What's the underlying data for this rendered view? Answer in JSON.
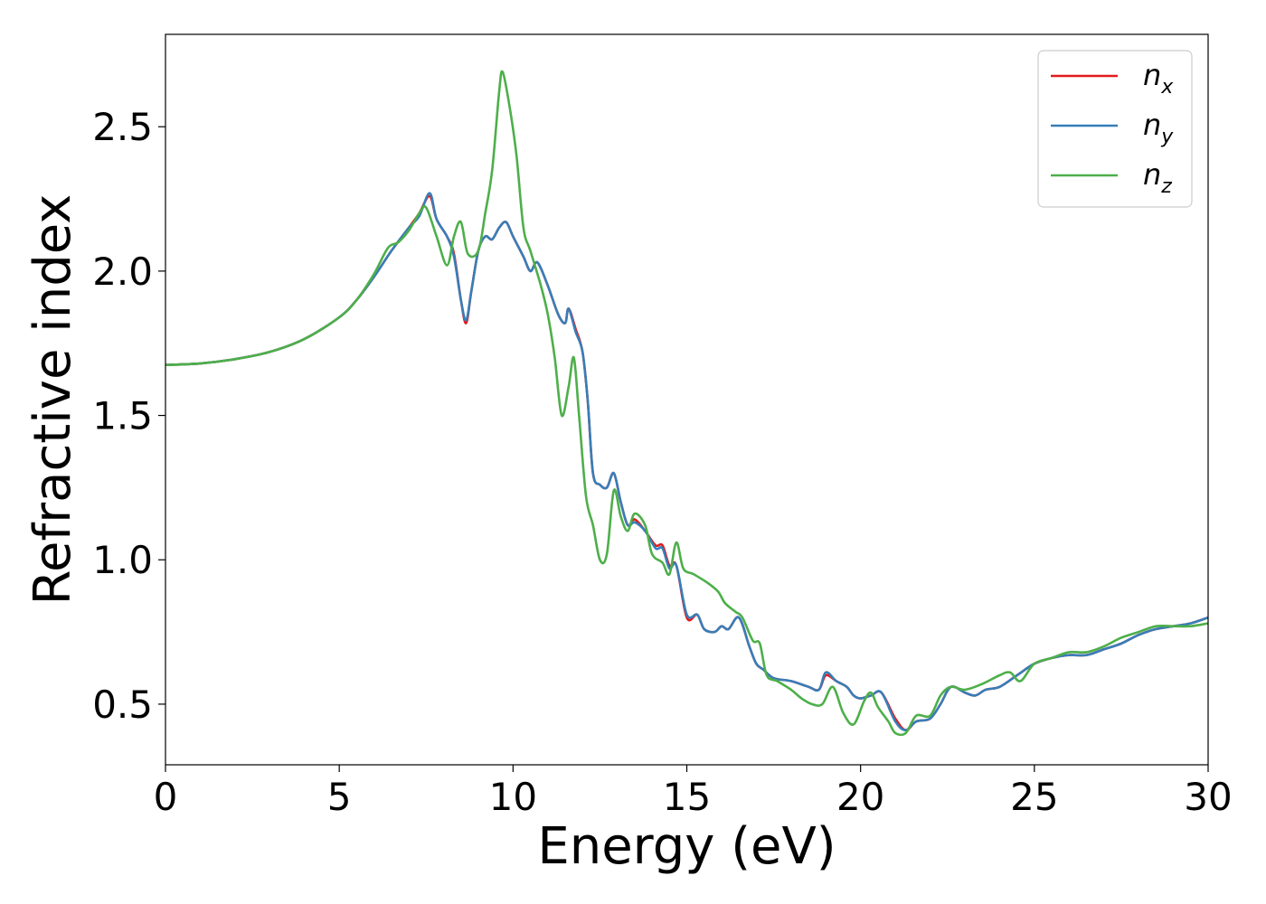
{
  "chart_data": {
    "type": "line",
    "xlabel": "Energy (eV)",
    "ylabel": "Refractive index",
    "xlim": [
      0,
      30
    ],
    "ylim": [
      0.29,
      2.82
    ],
    "xticks": [
      0,
      5,
      10,
      15,
      20,
      25,
      30
    ],
    "yticks": [
      0.5,
      1.0,
      1.5,
      2.0,
      2.5
    ],
    "xtick_labels": [
      "0",
      "5",
      "10",
      "15",
      "20",
      "25",
      "30"
    ],
    "ytick_labels": [
      "0.5",
      "1.0",
      "1.5",
      "2.0",
      "2.5"
    ],
    "grid": false,
    "legend_position": "top-right",
    "series": [
      {
        "name": "n",
        "subscript": "x",
        "color": "#e41a1c",
        "points": [
          [
            0,
            1.675
          ],
          [
            1,
            1.68
          ],
          [
            2,
            1.695
          ],
          [
            3,
            1.72
          ],
          [
            4,
            1.765
          ],
          [
            5,
            1.84
          ],
          [
            5.5,
            1.9
          ],
          [
            6,
            1.98
          ],
          [
            6.5,
            2.07
          ],
          [
            7,
            2.15
          ],
          [
            7.3,
            2.2
          ],
          [
            7.6,
            2.26
          ],
          [
            7.8,
            2.18
          ],
          [
            8.1,
            2.12
          ],
          [
            8.3,
            2.06
          ],
          [
            8.5,
            1.9
          ],
          [
            8.65,
            1.82
          ],
          [
            8.8,
            1.93
          ],
          [
            9,
            2.07
          ],
          [
            9.2,
            2.12
          ],
          [
            9.4,
            2.11
          ],
          [
            9.6,
            2.15
          ],
          [
            9.8,
            2.17
          ],
          [
            10,
            2.12
          ],
          [
            10.3,
            2.05
          ],
          [
            10.5,
            2.0
          ],
          [
            10.7,
            2.03
          ],
          [
            11,
            1.95
          ],
          [
            11.3,
            1.85
          ],
          [
            11.5,
            1.82
          ],
          [
            11.6,
            1.87
          ],
          [
            11.8,
            1.8
          ],
          [
            12,
            1.72
          ],
          [
            12.15,
            1.55
          ],
          [
            12.3,
            1.3
          ],
          [
            12.5,
            1.26
          ],
          [
            12.7,
            1.25
          ],
          [
            12.9,
            1.3
          ],
          [
            13.1,
            1.2
          ],
          [
            13.3,
            1.12
          ],
          [
            13.5,
            1.14
          ],
          [
            13.8,
            1.1
          ],
          [
            14.1,
            1.05
          ],
          [
            14.3,
            1.05
          ],
          [
            14.5,
            0.98
          ],
          [
            14.7,
            0.98
          ],
          [
            15,
            0.8
          ],
          [
            15.3,
            0.81
          ],
          [
            15.5,
            0.76
          ],
          [
            15.8,
            0.75
          ],
          [
            16,
            0.77
          ],
          [
            16.2,
            0.76
          ],
          [
            16.5,
            0.8
          ],
          [
            16.8,
            0.7
          ],
          [
            17,
            0.64
          ],
          [
            17.2,
            0.62
          ],
          [
            17.5,
            0.59
          ],
          [
            18,
            0.58
          ],
          [
            18.5,
            0.56
          ],
          [
            18.8,
            0.55
          ],
          [
            19,
            0.6
          ],
          [
            19.3,
            0.58
          ],
          [
            19.6,
            0.56
          ],
          [
            19.8,
            0.53
          ],
          [
            20,
            0.52
          ],
          [
            20.3,
            0.53
          ],
          [
            20.6,
            0.54
          ],
          [
            21,
            0.45
          ],
          [
            21.3,
            0.41
          ],
          [
            21.6,
            0.44
          ],
          [
            22,
            0.45
          ],
          [
            22.3,
            0.5
          ],
          [
            22.6,
            0.56
          ],
          [
            23,
            0.54
          ],
          [
            23.3,
            0.53
          ],
          [
            23.6,
            0.55
          ],
          [
            24,
            0.56
          ],
          [
            24.5,
            0.6
          ],
          [
            25,
            0.64
          ],
          [
            25.5,
            0.66
          ],
          [
            26,
            0.67
          ],
          [
            26.5,
            0.67
          ],
          [
            27,
            0.69
          ],
          [
            27.5,
            0.71
          ],
          [
            28,
            0.74
          ],
          [
            28.5,
            0.76
          ],
          [
            29,
            0.77
          ],
          [
            29.5,
            0.78
          ],
          [
            30,
            0.8
          ]
        ]
      },
      {
        "name": "n",
        "subscript": "y",
        "color": "#377eb8",
        "points": [
          [
            0,
            1.675
          ],
          [
            1,
            1.68
          ],
          [
            2,
            1.695
          ],
          [
            3,
            1.72
          ],
          [
            4,
            1.765
          ],
          [
            5,
            1.84
          ],
          [
            5.5,
            1.9
          ],
          [
            6,
            1.98
          ],
          [
            6.5,
            2.07
          ],
          [
            7,
            2.15
          ],
          [
            7.3,
            2.19
          ],
          [
            7.6,
            2.27
          ],
          [
            7.8,
            2.18
          ],
          [
            8.1,
            2.12
          ],
          [
            8.3,
            2.05
          ],
          [
            8.5,
            1.9
          ],
          [
            8.65,
            1.83
          ],
          [
            8.8,
            1.93
          ],
          [
            9,
            2.07
          ],
          [
            9.2,
            2.12
          ],
          [
            9.4,
            2.11
          ],
          [
            9.6,
            2.15
          ],
          [
            9.8,
            2.17
          ],
          [
            10,
            2.12
          ],
          [
            10.3,
            2.05
          ],
          [
            10.5,
            2.0
          ],
          [
            10.7,
            2.03
          ],
          [
            11,
            1.95
          ],
          [
            11.3,
            1.85
          ],
          [
            11.5,
            1.82
          ],
          [
            11.6,
            1.87
          ],
          [
            11.8,
            1.79
          ],
          [
            12,
            1.72
          ],
          [
            12.15,
            1.55
          ],
          [
            12.3,
            1.3
          ],
          [
            12.5,
            1.26
          ],
          [
            12.7,
            1.25
          ],
          [
            12.9,
            1.3
          ],
          [
            13.1,
            1.2
          ],
          [
            13.3,
            1.12
          ],
          [
            13.5,
            1.13
          ],
          [
            13.8,
            1.1
          ],
          [
            14.1,
            1.04
          ],
          [
            14.3,
            1.04
          ],
          [
            14.5,
            0.97
          ],
          [
            14.7,
            0.98
          ],
          [
            15,
            0.81
          ],
          [
            15.3,
            0.81
          ],
          [
            15.5,
            0.76
          ],
          [
            15.8,
            0.75
          ],
          [
            16,
            0.77
          ],
          [
            16.2,
            0.76
          ],
          [
            16.5,
            0.8
          ],
          [
            16.8,
            0.7
          ],
          [
            17,
            0.64
          ],
          [
            17.2,
            0.62
          ],
          [
            17.5,
            0.59
          ],
          [
            18,
            0.58
          ],
          [
            18.5,
            0.56
          ],
          [
            18.8,
            0.55
          ],
          [
            19,
            0.61
          ],
          [
            19.3,
            0.58
          ],
          [
            19.6,
            0.56
          ],
          [
            19.8,
            0.53
          ],
          [
            20,
            0.52
          ],
          [
            20.3,
            0.53
          ],
          [
            20.6,
            0.54
          ],
          [
            21,
            0.44
          ],
          [
            21.3,
            0.41
          ],
          [
            21.6,
            0.44
          ],
          [
            22,
            0.45
          ],
          [
            22.3,
            0.5
          ],
          [
            22.6,
            0.56
          ],
          [
            23,
            0.54
          ],
          [
            23.3,
            0.53
          ],
          [
            23.6,
            0.55
          ],
          [
            24,
            0.56
          ],
          [
            24.5,
            0.6
          ],
          [
            25,
            0.64
          ],
          [
            25.5,
            0.66
          ],
          [
            26,
            0.67
          ],
          [
            26.5,
            0.67
          ],
          [
            27,
            0.69
          ],
          [
            27.5,
            0.71
          ],
          [
            28,
            0.74
          ],
          [
            28.5,
            0.76
          ],
          [
            29,
            0.77
          ],
          [
            29.5,
            0.78
          ],
          [
            30,
            0.8
          ]
        ]
      },
      {
        "name": "n",
        "subscript": "z",
        "color": "#4daf4a",
        "points": [
          [
            0,
            1.675
          ],
          [
            1,
            1.68
          ],
          [
            2,
            1.695
          ],
          [
            3,
            1.72
          ],
          [
            4,
            1.765
          ],
          [
            5,
            1.84
          ],
          [
            5.5,
            1.9
          ],
          [
            6,
            1.99
          ],
          [
            6.4,
            2.08
          ],
          [
            6.7,
            2.1
          ],
          [
            7,
            2.14
          ],
          [
            7.3,
            2.2
          ],
          [
            7.5,
            2.22
          ],
          [
            7.8,
            2.12
          ],
          [
            8.1,
            2.02
          ],
          [
            8.3,
            2.12
          ],
          [
            8.5,
            2.17
          ],
          [
            8.7,
            2.06
          ],
          [
            9,
            2.07
          ],
          [
            9.2,
            2.2
          ],
          [
            9.4,
            2.35
          ],
          [
            9.6,
            2.62
          ],
          [
            9.7,
            2.69
          ],
          [
            9.9,
            2.57
          ],
          [
            10.1,
            2.4
          ],
          [
            10.3,
            2.15
          ],
          [
            10.5,
            2.07
          ],
          [
            10.8,
            1.95
          ],
          [
            11,
            1.85
          ],
          [
            11.2,
            1.7
          ],
          [
            11.4,
            1.5
          ],
          [
            11.6,
            1.6
          ],
          [
            11.75,
            1.7
          ],
          [
            11.9,
            1.5
          ],
          [
            12.1,
            1.22
          ],
          [
            12.3,
            1.12
          ],
          [
            12.5,
            1.0
          ],
          [
            12.7,
            1.02
          ],
          [
            12.9,
            1.24
          ],
          [
            13.1,
            1.15
          ],
          [
            13.3,
            1.1
          ],
          [
            13.5,
            1.16
          ],
          [
            13.8,
            1.12
          ],
          [
            14,
            1.02
          ],
          [
            14.3,
            0.99
          ],
          [
            14.5,
            0.95
          ],
          [
            14.7,
            1.06
          ],
          [
            14.9,
            0.97
          ],
          [
            15.2,
            0.95
          ],
          [
            15.6,
            0.92
          ],
          [
            15.9,
            0.89
          ],
          [
            16.1,
            0.85
          ],
          [
            16.4,
            0.82
          ],
          [
            16.6,
            0.8
          ],
          [
            16.9,
            0.72
          ],
          [
            17.1,
            0.71
          ],
          [
            17.3,
            0.6
          ],
          [
            17.6,
            0.58
          ],
          [
            18,
            0.55
          ],
          [
            18.3,
            0.52
          ],
          [
            18.6,
            0.5
          ],
          [
            18.9,
            0.5
          ],
          [
            19.2,
            0.56
          ],
          [
            19.5,
            0.47
          ],
          [
            19.8,
            0.43
          ],
          [
            20.1,
            0.51
          ],
          [
            20.3,
            0.54
          ],
          [
            20.5,
            0.49
          ],
          [
            20.8,
            0.44
          ],
          [
            21,
            0.4
          ],
          [
            21.3,
            0.4
          ],
          [
            21.6,
            0.46
          ],
          [
            22,
            0.46
          ],
          [
            22.3,
            0.53
          ],
          [
            22.6,
            0.56
          ],
          [
            23,
            0.55
          ],
          [
            23.5,
            0.57
          ],
          [
            24,
            0.6
          ],
          [
            24.3,
            0.61
          ],
          [
            24.6,
            0.58
          ],
          [
            25,
            0.64
          ],
          [
            25.5,
            0.66
          ],
          [
            26,
            0.68
          ],
          [
            26.5,
            0.68
          ],
          [
            27,
            0.7
          ],
          [
            27.5,
            0.73
          ],
          [
            28,
            0.75
          ],
          [
            28.5,
            0.77
          ],
          [
            29,
            0.77
          ],
          [
            29.5,
            0.77
          ],
          [
            30,
            0.78
          ]
        ]
      }
    ]
  }
}
